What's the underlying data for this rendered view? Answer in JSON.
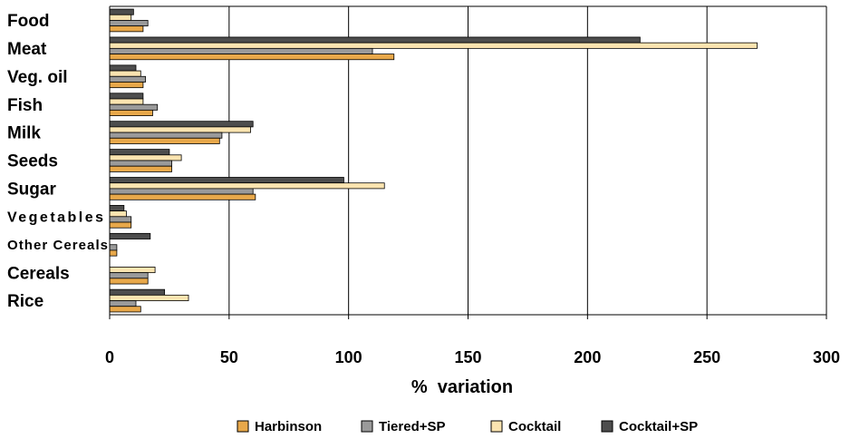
{
  "chart_data": {
    "type": "bar",
    "orientation": "horizontal",
    "categories": [
      "Food",
      "Meat",
      "Veg. oil",
      "Fish",
      "Milk",
      "Seeds",
      "Sugar",
      "Vegetables",
      "Other Cereals",
      "Cereals",
      "Rice"
    ],
    "series": [
      {
        "name": "Harbinson",
        "color": "#e8a84a",
        "values": [
          14,
          119,
          14,
          18,
          46,
          26,
          61,
          9,
          3,
          16,
          13
        ]
      },
      {
        "name": "Tiered+SP",
        "color": "#9a9a9a",
        "values": [
          16,
          110,
          15,
          20,
          47,
          26,
          60,
          9,
          3,
          16,
          11
        ]
      },
      {
        "name": "Cocktail",
        "color": "#fbe4b0",
        "values": [
          9,
          271,
          13,
          14,
          59,
          30,
          115,
          7,
          0,
          19,
          33
        ]
      },
      {
        "name": "Cocktail+SP",
        "color": "#4d4d4d",
        "values": [
          10,
          222,
          11,
          14,
          60,
          25,
          98,
          6,
          17,
          0,
          23
        ]
      }
    ],
    "xlabel": "%  variation",
    "xlim": [
      0,
      300
    ],
    "xticks": [
      0,
      50,
      100,
      150,
      200,
      250,
      300
    ],
    "grid": "vertical",
    "legend": "bottom"
  }
}
